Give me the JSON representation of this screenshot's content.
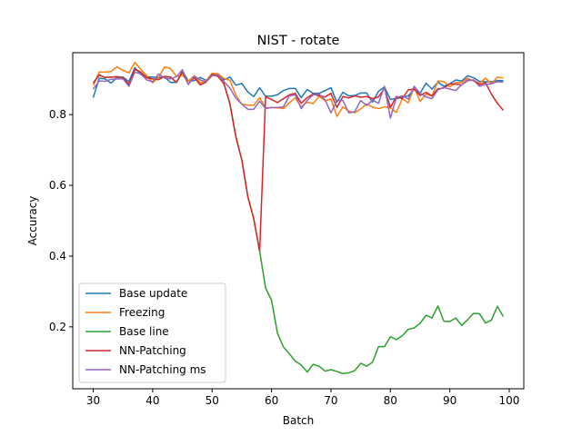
{
  "chart_data": {
    "type": "line",
    "title": "NIST - rotate",
    "xlabel": "Batch",
    "ylabel": "Accuracy",
    "xlim": [
      26.55,
      102.45
    ],
    "ylim": [
      0.025,
      0.975
    ],
    "xticks": [
      30,
      40,
      50,
      60,
      70,
      80,
      90,
      100
    ],
    "yticks": [
      0.2,
      0.4,
      0.6,
      0.8
    ],
    "grid": false,
    "legend": "lower-left",
    "x": [
      30,
      31,
      32,
      33,
      34,
      35,
      36,
      37,
      38,
      39,
      40,
      41,
      42,
      43,
      44,
      45,
      46,
      47,
      48,
      49,
      50,
      51,
      52,
      53,
      54,
      55,
      56,
      57,
      58,
      59,
      60,
      61,
      62,
      63,
      64,
      65,
      66,
      67,
      68,
      69,
      70,
      71,
      72,
      73,
      74,
      75,
      76,
      77,
      78,
      79,
      80,
      81,
      82,
      83,
      84,
      85,
      86,
      87,
      88,
      89,
      90,
      91,
      92,
      93,
      94,
      95,
      96,
      97,
      98,
      99
    ],
    "series": [
      {
        "name": "Base update",
        "color": "#1f77b4",
        "values": [
          0.848,
          0.903,
          0.901,
          0.889,
          0.905,
          0.906,
          0.893,
          0.933,
          0.913,
          0.907,
          0.906,
          0.905,
          0.906,
          0.891,
          0.891,
          0.923,
          0.895,
          0.896,
          0.905,
          0.897,
          0.912,
          0.916,
          0.898,
          0.906,
          0.883,
          0.888,
          0.864,
          0.851,
          0.876,
          0.852,
          0.852,
          0.856,
          0.868,
          0.874,
          0.874,
          0.848,
          0.871,
          0.86,
          0.86,
          0.868,
          0.876,
          0.835,
          0.863,
          0.853,
          0.854,
          0.861,
          0.861,
          0.835,
          0.866,
          0.878,
          0.843,
          0.845,
          0.849,
          0.853,
          0.871,
          0.86,
          0.889,
          0.872,
          0.892,
          0.88,
          0.887,
          0.898,
          0.895,
          0.91,
          0.904,
          0.894,
          0.893,
          0.893,
          0.896,
          0.896
        ]
      },
      {
        "name": "Freezing",
        "color": "#ff7f0e",
        "values": [
          0.882,
          0.92,
          0.92,
          0.922,
          0.935,
          0.925,
          0.918,
          0.948,
          0.928,
          0.91,
          0.89,
          0.905,
          0.935,
          0.93,
          0.908,
          0.911,
          0.895,
          0.91,
          0.89,
          0.896,
          0.917,
          0.915,
          0.902,
          0.897,
          0.855,
          0.829,
          0.827,
          0.826,
          0.848,
          0.819,
          0.82,
          0.819,
          0.817,
          0.833,
          0.847,
          0.822,
          0.835,
          0.831,
          0.852,
          0.839,
          0.844,
          0.795,
          0.822,
          0.81,
          0.805,
          0.816,
          0.83,
          0.821,
          0.817,
          0.822,
          0.819,
          0.806,
          0.845,
          0.833,
          0.878,
          0.837,
          0.858,
          0.852,
          0.895,
          0.893,
          0.878,
          0.891,
          0.891,
          0.903,
          0.895,
          0.889,
          0.903,
          0.887,
          0.906,
          0.903
        ]
      },
      {
        "name": "Base line",
        "color": "#2ca02c",
        "values": [
          0.889,
          0.912,
          0.905,
          0.906,
          0.907,
          0.904,
          0.885,
          0.928,
          0.92,
          0.904,
          0.901,
          0.899,
          0.908,
          0.906,
          0.891,
          0.92,
          0.886,
          0.905,
          0.884,
          0.892,
          0.913,
          0.908,
          0.887,
          0.83,
          0.737,
          0.672,
          0.569,
          0.506,
          0.414,
          0.31,
          0.275,
          0.182,
          0.143,
          0.124,
          0.103,
          0.092,
          0.072,
          0.094,
          0.089,
          0.075,
          0.079,
          0.074,
          0.068,
          0.07,
          0.076,
          0.097,
          0.089,
          0.1,
          0.144,
          0.144,
          0.172,
          0.164,
          0.175,
          0.193,
          0.197,
          0.21,
          0.233,
          0.225,
          0.259,
          0.216,
          0.215,
          0.225,
          0.204,
          0.22,
          0.238,
          0.237,
          0.211,
          0.219,
          0.258,
          0.229
        ]
      },
      {
        "name": "NN-Patching",
        "color": "#d62728",
        "values": [
          0.889,
          0.912,
          0.905,
          0.906,
          0.907,
          0.904,
          0.885,
          0.928,
          0.92,
          0.904,
          0.901,
          0.899,
          0.908,
          0.906,
          0.891,
          0.92,
          0.886,
          0.905,
          0.884,
          0.892,
          0.913,
          0.908,
          0.887,
          0.83,
          0.737,
          0.672,
          0.569,
          0.506,
          0.414,
          0.85,
          0.843,
          0.834,
          0.845,
          0.856,
          0.86,
          0.832,
          0.848,
          0.858,
          0.853,
          0.85,
          0.86,
          0.82,
          0.851,
          0.847,
          0.853,
          0.849,
          0.851,
          0.845,
          0.85,
          0.874,
          0.82,
          0.851,
          0.845,
          0.87,
          0.872,
          0.854,
          0.863,
          0.853,
          0.873,
          0.875,
          0.887,
          0.886,
          0.884,
          0.896,
          0.898,
          0.885,
          0.89,
          0.858,
          0.832,
          0.812
        ]
      },
      {
        "name": "NN-Patching ms",
        "color": "#9467bd",
        "values": [
          0.872,
          0.895,
          0.894,
          0.9,
          0.901,
          0.901,
          0.88,
          0.92,
          0.915,
          0.898,
          0.893,
          0.915,
          0.903,
          0.901,
          0.907,
          0.927,
          0.885,
          0.909,
          0.898,
          0.893,
          0.91,
          0.912,
          0.893,
          0.875,
          0.846,
          0.83,
          0.815,
          0.815,
          0.838,
          0.817,
          0.82,
          0.82,
          0.822,
          0.853,
          0.856,
          0.817,
          0.84,
          0.856,
          0.858,
          0.842,
          0.805,
          0.84,
          0.84,
          0.805,
          0.808,
          0.84,
          0.826,
          0.841,
          0.832,
          0.88,
          0.79,
          0.848,
          0.853,
          0.844,
          0.88,
          0.86,
          0.85,
          0.845,
          0.87,
          0.877,
          0.872,
          0.868,
          0.885,
          0.898,
          0.897,
          0.88,
          0.885,
          0.887,
          0.893,
          0.892
        ]
      }
    ]
  }
}
